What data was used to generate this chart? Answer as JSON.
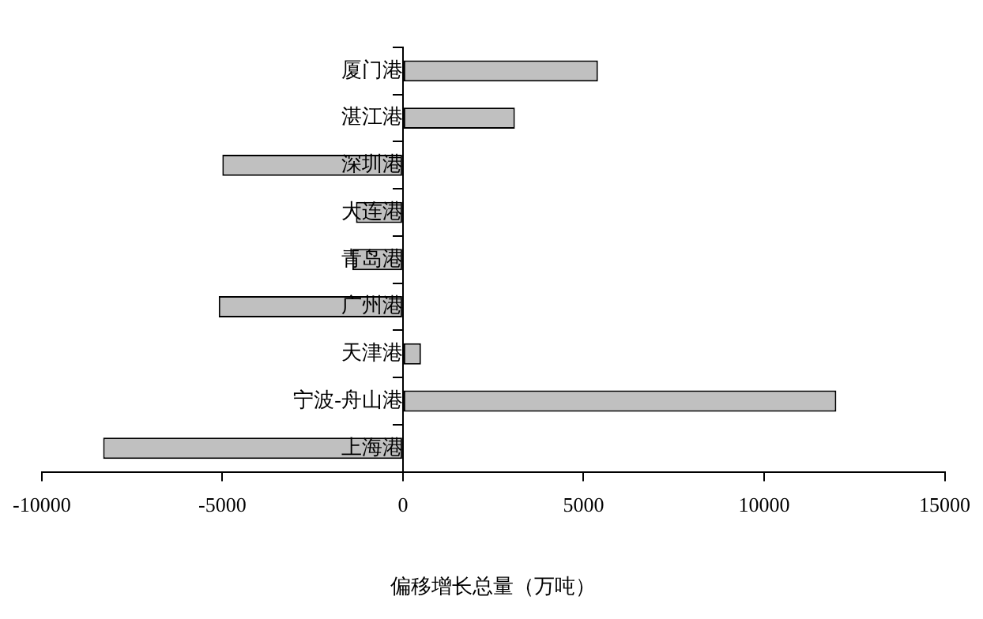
{
  "chart_data": {
    "type": "bar",
    "orientation": "horizontal",
    "xlabel": "偏移增长总量（万吨）",
    "categories": [
      "厦门港",
      "湛江港",
      "深圳港",
      "大连港",
      "青岛港",
      "广州港",
      "天津港",
      "宁波-舟山港",
      "上海港"
    ],
    "values": [
      5400,
      3100,
      -5000,
      -1300,
      -1400,
      -5100,
      500,
      12000,
      -8300
    ],
    "color": "#c0c0c0",
    "xlim": [
      -10000,
      15000
    ],
    "xticks": [
      -10000,
      -5000,
      0,
      5000,
      10000,
      15000
    ]
  }
}
